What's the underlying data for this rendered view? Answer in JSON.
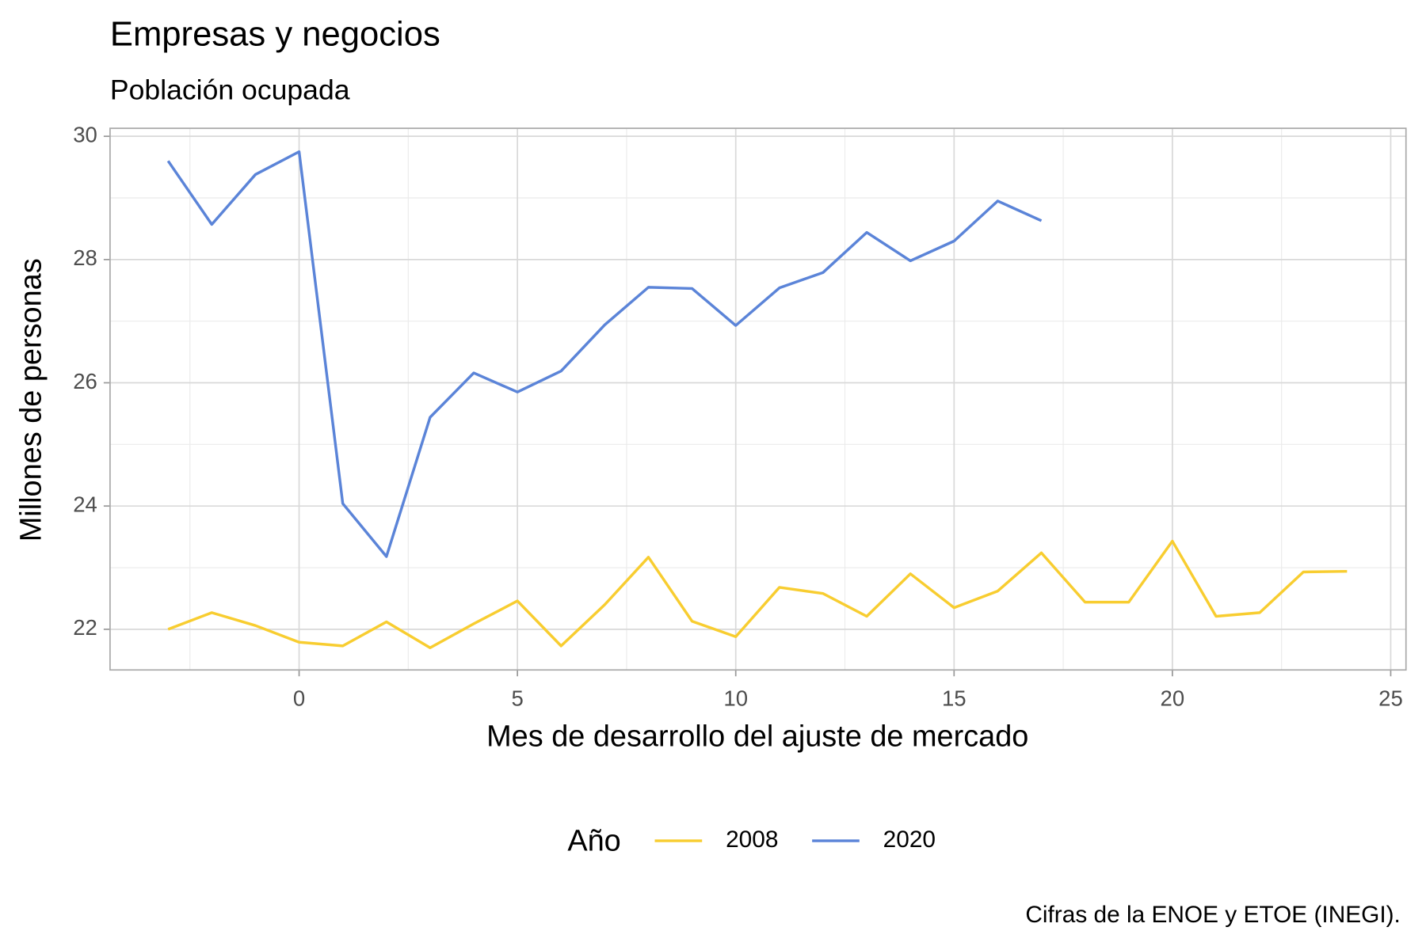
{
  "chart_data": {
    "type": "line",
    "title": "Empresas y negocios",
    "subtitle": "Población ocupada",
    "x_label": "Mes de desarrollo del ajuste de mercado",
    "y_label": "Millones de personas",
    "legend_title": "Año",
    "caption": "Cifras de la ENOE y ETOE (INEGI).",
    "legend": "bottom",
    "grid": true,
    "xlim": [
      -4.33,
      25.35
    ],
    "ylim": [
      21.34,
      30.13
    ],
    "xticks": [
      0,
      5,
      10,
      15,
      20,
      25
    ],
    "yticks": [
      22,
      24,
      26,
      28,
      30
    ],
    "series": [
      {
        "name": "2008",
        "color": "#f8cd30",
        "x": [
          -3,
          -2,
          -1,
          0,
          1,
          2,
          3,
          4,
          5,
          6,
          7,
          8,
          9,
          10,
          11,
          12,
          13,
          14,
          15,
          16,
          17,
          18,
          19,
          20,
          21,
          22,
          23,
          24
        ],
        "values": [
          22.0,
          22.27,
          22.06,
          21.79,
          21.73,
          22.12,
          21.7,
          22.09,
          22.46,
          21.73,
          22.4,
          23.17,
          22.13,
          21.88,
          22.68,
          22.58,
          22.21,
          22.9,
          22.35,
          22.62,
          23.24,
          22.44,
          22.44,
          23.43,
          22.21,
          22.27,
          22.93,
          22.94
        ]
      },
      {
        "name": "2020",
        "color": "#5b84d8",
        "x": [
          -3,
          -2,
          -1,
          0,
          1,
          2,
          3,
          4,
          5,
          6,
          7,
          8,
          9,
          10,
          11,
          12,
          13,
          14,
          15,
          16,
          17
        ],
        "values": [
          29.6,
          28.57,
          29.38,
          29.75,
          24.04,
          23.18,
          25.44,
          26.16,
          25.85,
          26.19,
          26.94,
          27.55,
          27.53,
          26.93,
          27.54,
          27.79,
          28.44,
          27.98,
          28.3,
          28.95,
          28.63
        ]
      }
    ]
  }
}
